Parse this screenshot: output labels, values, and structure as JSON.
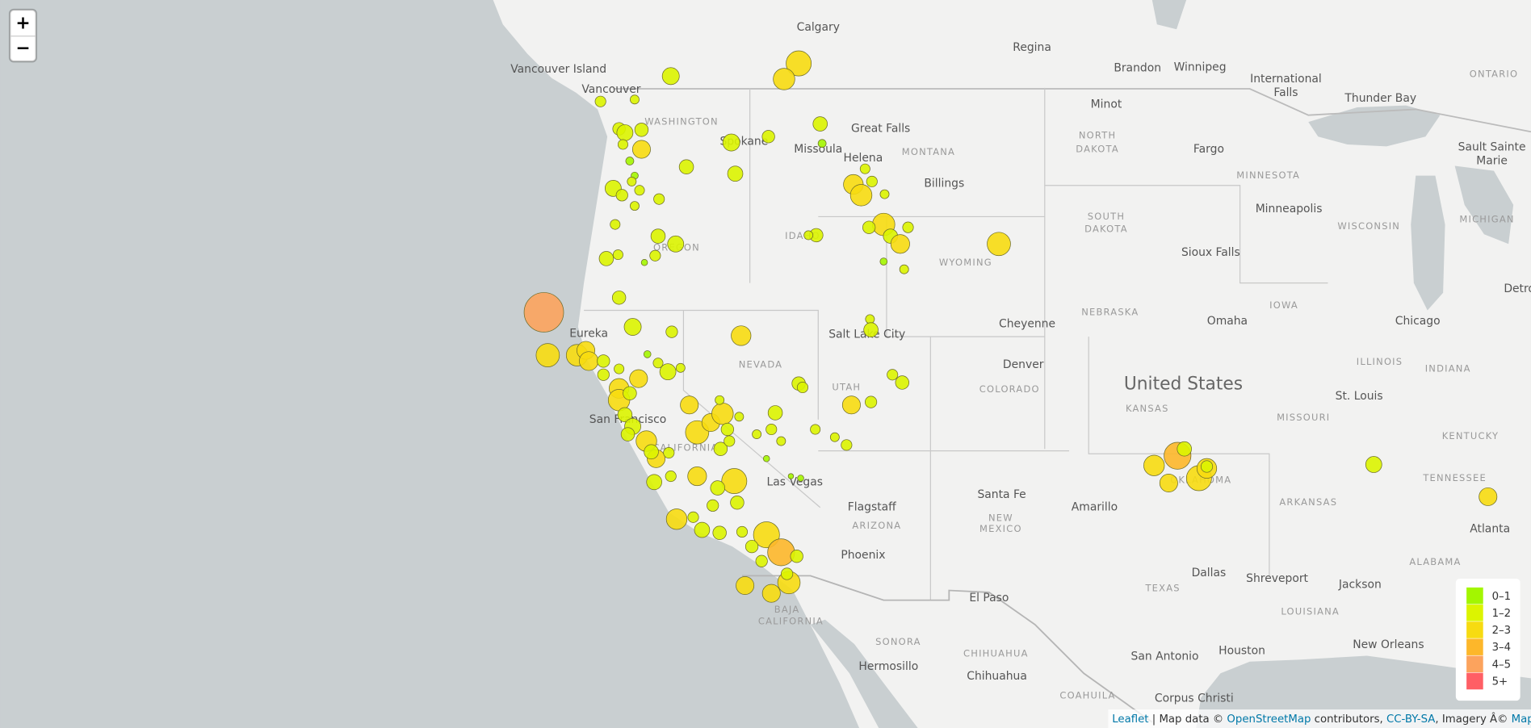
{
  "zoom": {
    "zoom_in": "+",
    "zoom_out": "−"
  },
  "map": {
    "country": "United States",
    "cities": [
      "Calgary",
      "Regina",
      "Brandon",
      "Winnipeg",
      "International",
      "Falls",
      "Vancouver Island",
      "Vancouver",
      "Minot",
      "Thunder Bay",
      "Great Falls",
      "Fargo",
      "Sault Sainte",
      "Marie",
      "Spokane",
      "Missoula",
      "Helena",
      "Billings",
      "Minneapolis",
      "Sioux Falls",
      "Detroit",
      "Omaha",
      "Chicago",
      "Cheyenne",
      "Eureka",
      "Salt Lake City",
      "Denver",
      "St. Louis",
      "San Francisco",
      "Las Vegas",
      "Santa Fe",
      "Amarillo",
      "Flagstaff",
      "Atlanta",
      "Phoenix",
      "Dallas",
      "Shreveport",
      "Jackson",
      "El Paso",
      "Houston",
      "New Orleans",
      "San Antonio",
      "Hermosillo",
      "Chihuahua",
      "Corpus Christi"
    ],
    "regions": [
      "ONTARIO",
      "WASHINGTON",
      "NORTH",
      "DAKOTA",
      "MONTANA",
      "MINNESOTA",
      "SOUTH",
      "DAKOTA",
      "WISCONSIN",
      "MICHIGAN",
      "IDAHO",
      "OREGON",
      "WYOMING",
      "NEBRASKA",
      "IOWA",
      "NEVADA",
      "ILLINOIS",
      "INDIANA",
      "UTAH",
      "COLORADO",
      "KANSAS",
      "MISSOURI",
      "CALIFORNIA",
      "KENTUCKY",
      "TENNESSEE",
      "OKLAHOMA",
      "ARKANSAS",
      "NEW",
      "MEXICO",
      "ARIZONA",
      "ALABAMA",
      "TEXAS",
      "BAJA",
      "CALIFORNIA",
      "LOUISIANA",
      "SONORA",
      "CHIHUAHUA",
      "COAHUILA"
    ]
  },
  "earthquakes": {
    "magnitudes": [
      2.8,
      2.4,
      1.9,
      1.2,
      1.0,
      1.4,
      1.8,
      1.5,
      1.1,
      2.0,
      0.9,
      0.8,
      1.0,
      1.8,
      1.3,
      1.1,
      1.0,
      1.2,
      1.1,
      1.6,
      1.9,
      1.4,
      1.7,
      1.6,
      0.9,
      2.2,
      2.4,
      1.2,
      1.1,
      1.0,
      2.5,
      1.4,
      1.6,
      2.1,
      1.2,
      1.0,
      0.8,
      2.6,
      1.5,
      1.0,
      1.6,
      1.8,
      1.2,
      1.6,
      1.1,
      0.7,
      1.5,
      4.4,
      1.9,
      1.3,
      2.2,
      1.0,
      1.6,
      2.6,
      2.4,
      2.0,
      2.1,
      1.4,
      0.8,
      1.1,
      1.8,
      1.0,
      1.3,
      1.1,
      2.0,
      2.2,
      2.4,
      1.5,
      1.6,
      1.8,
      1.5,
      2.3,
      2.0,
      1.6,
      1.2,
      2.0,
      2.6,
      2.0,
      2.4,
      1.0,
      1.4,
      1.5,
      1.2,
      1.0,
      1.6,
      1.2,
      1.0,
      1.5,
      1.2,
      1.1,
      1.0,
      1.2,
      2.0,
      1.3,
      1.2,
      1.5,
      1.7,
      1.2,
      2.1,
      2.8,
      1.6,
      1.5,
      2.3,
      1.7,
      1.5,
      1.2,
      1.3,
      2.9,
      3.0,
      1.4,
      1.2,
      1.3,
      2.5,
      2.0,
      2.0,
      1.3,
      1.4,
      0.7,
      0.6,
      0.7,
      1.0,
      2.3,
      3.0,
      1.6,
      2.0,
      2.8,
      2.2,
      1.3,
      1.8,
      2.0
    ]
  },
  "legend": {
    "labels": [
      "0–1",
      "1–2",
      "2–3",
      "3–4",
      "4–5",
      "5+"
    ],
    "colors": [
      "#a3f600",
      "#dcf400",
      "#f7db11",
      "#fdb72a",
      "#fca35d",
      "#ff5f65"
    ]
  },
  "attribution": {
    "parts": [
      "Leaflet",
      " | Map data © ",
      "OpenStreetMap",
      " contributors, ",
      "CC-BY-SA",
      ", Imagery Â© ",
      "Mapbox"
    ]
  }
}
